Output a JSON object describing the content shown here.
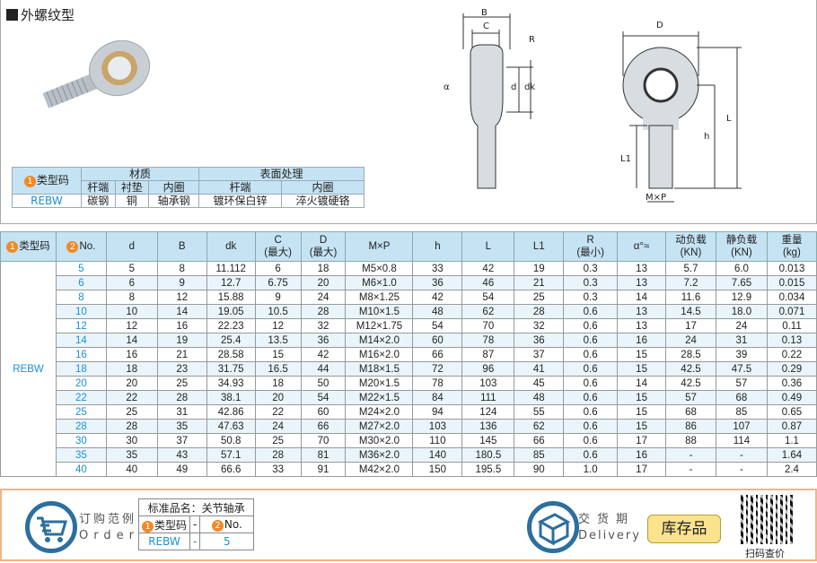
{
  "title": "外螺纹型",
  "material_table": {
    "type_header": "类型码",
    "material": "材质",
    "surface": "表面处理",
    "sub": [
      "杆端",
      "衬垫",
      "内圈",
      "杆端",
      "内圈"
    ],
    "row": [
      "REBW",
      "碳钢",
      "铜",
      "轴承钢",
      "镀环保白锌",
      "淬火镀硬铬"
    ]
  },
  "drawing_labels": {
    "B": "B",
    "C": "C",
    "R": "R",
    "d": "d",
    "dk": "dk",
    "alpha": "α",
    "D": "D",
    "h": "h",
    "L": "L",
    "L1": "L1",
    "MxP": "M×P"
  },
  "spec": {
    "headers": [
      [
        "类型码"
      ],
      [
        "No."
      ],
      [
        "d"
      ],
      [
        "B"
      ],
      [
        "dk"
      ],
      [
        "C",
        "(最大)"
      ],
      [
        "D",
        "(最大)"
      ],
      [
        "M×P"
      ],
      [
        "h"
      ],
      [
        "L"
      ],
      [
        "L1"
      ],
      [
        "R",
        "(最小)"
      ],
      [
        "α°≈"
      ],
      [
        "动负载",
        "(KN)"
      ],
      [
        "静负载",
        "(KN)"
      ],
      [
        "重量",
        "(kg)"
      ]
    ],
    "type": "REBW",
    "rows": [
      [
        "5",
        "5",
        "8",
        "11.112",
        "6",
        "18",
        "M5×0.8",
        "33",
        "42",
        "19",
        "0.3",
        "13",
        "5.7",
        "6.0",
        "0.013"
      ],
      [
        "6",
        "6",
        "9",
        "12.7",
        "6.75",
        "20",
        "M6×1.0",
        "36",
        "46",
        "21",
        "0.3",
        "13",
        "7.2",
        "7.65",
        "0.015"
      ],
      [
        "8",
        "8",
        "12",
        "15.88",
        "9",
        "24",
        "M8×1.25",
        "42",
        "54",
        "25",
        "0.3",
        "14",
        "11.6",
        "12.9",
        "0.034"
      ],
      [
        "10",
        "10",
        "14",
        "19.05",
        "10.5",
        "28",
        "M10×1.5",
        "48",
        "62",
        "28",
        "0.6",
        "13",
        "14.5",
        "18.0",
        "0.071"
      ],
      [
        "12",
        "12",
        "16",
        "22.23",
        "12",
        "32",
        "M12×1.75",
        "54",
        "70",
        "32",
        "0.6",
        "13",
        "17",
        "24",
        "0.11"
      ],
      [
        "14",
        "14",
        "19",
        "25.4",
        "13.5",
        "36",
        "M14×2.0",
        "60",
        "78",
        "36",
        "0.6",
        "16",
        "24",
        "31",
        "0.13"
      ],
      [
        "16",
        "16",
        "21",
        "28.58",
        "15",
        "42",
        "M16×2.0",
        "66",
        "87",
        "37",
        "0.6",
        "15",
        "28.5",
        "39",
        "0.22"
      ],
      [
        "18",
        "18",
        "23",
        "31.75",
        "16.5",
        "44",
        "M18×1.5",
        "72",
        "96",
        "41",
        "0.6",
        "15",
        "42.5",
        "47.5",
        "0.29"
      ],
      [
        "20",
        "20",
        "25",
        "34.93",
        "18",
        "50",
        "M20×1.5",
        "78",
        "103",
        "45",
        "0.6",
        "14",
        "42.5",
        "57",
        "0.36"
      ],
      [
        "22",
        "22",
        "28",
        "38.1",
        "20",
        "54",
        "M22×1.5",
        "84",
        "111",
        "48",
        "0.6",
        "15",
        "57",
        "68",
        "0.49"
      ],
      [
        "25",
        "25",
        "31",
        "42.86",
        "22",
        "60",
        "M24×2.0",
        "94",
        "124",
        "55",
        "0.6",
        "15",
        "68",
        "85",
        "0.65"
      ],
      [
        "28",
        "28",
        "35",
        "47.63",
        "24",
        "66",
        "M27×2.0",
        "103",
        "136",
        "62",
        "0.6",
        "15",
        "86",
        "107",
        "0.87"
      ],
      [
        "30",
        "30",
        "37",
        "50.8",
        "25",
        "70",
        "M30×2.0",
        "110",
        "145",
        "66",
        "0.6",
        "17",
        "88",
        "114",
        "1.1"
      ],
      [
        "35",
        "35",
        "43",
        "57.1",
        "28",
        "81",
        "M36×2.0",
        "140",
        "180.5",
        "85",
        "0.6",
        "16",
        "-",
        "-",
        "1.64"
      ],
      [
        "40",
        "40",
        "49",
        "66.6",
        "33",
        "91",
        "M42×2.0",
        "150",
        "195.5",
        "90",
        "1.0",
        "17",
        "-",
        "-",
        "2.4"
      ]
    ]
  },
  "order": {
    "label_cn": "订购范例",
    "label_en": "Order",
    "std_name": "标准品名：关节轴承",
    "type_header": "类型码",
    "dash": "-",
    "no_header": "No.",
    "type_value": "REBW",
    "no_value": "5"
  },
  "delivery": {
    "label_cn": "交货期",
    "label_en": "Delivery",
    "status": "库存品"
  },
  "qr": {
    "caption": "扫码查价"
  },
  "colors": {
    "header_bg": "#c5e3f3",
    "accent_blue": "#1a8fd8",
    "badge_orange": "#f08a24",
    "stock_yellow": "#fbe38e",
    "border_orange": "#f3b585"
  }
}
